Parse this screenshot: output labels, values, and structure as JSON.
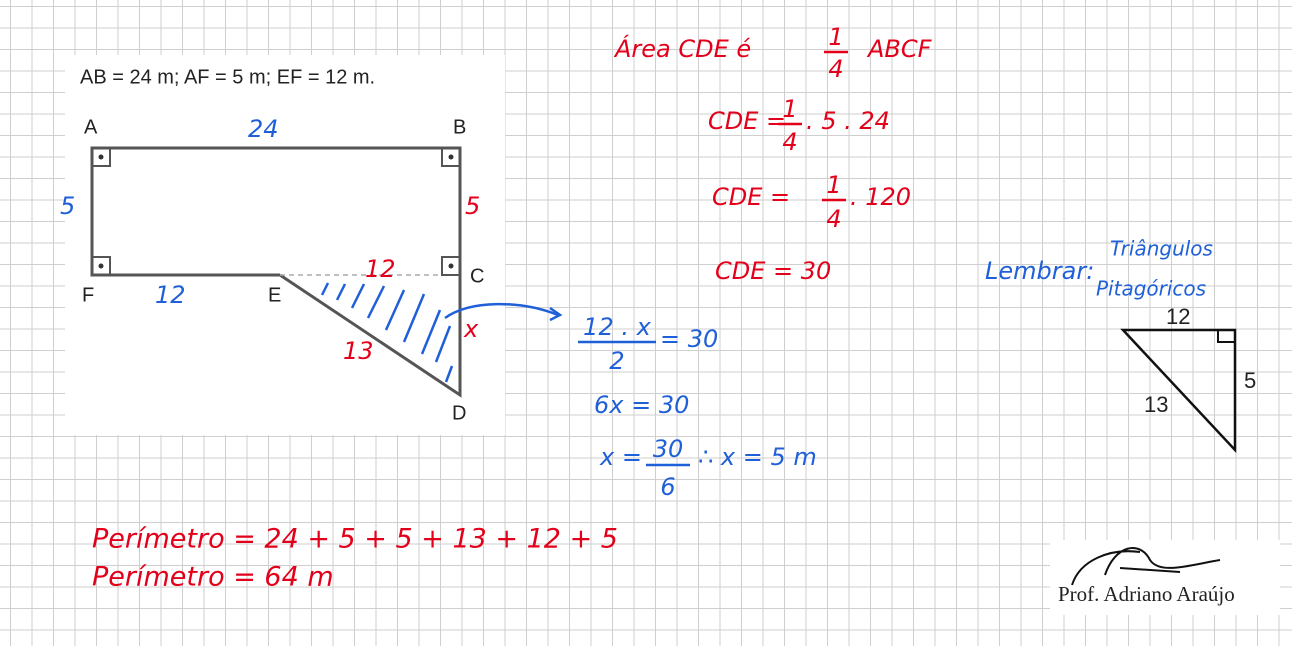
{
  "problem": "AB = 24 m; AF = 5 m; EF = 12 m.",
  "figure": {
    "vertices": {
      "a": "A",
      "b": "B",
      "c": "C",
      "d": "D",
      "e": "E",
      "f": "F"
    },
    "sides": {
      "ab": "24",
      "af": "5",
      "bc": "5",
      "fe": "12",
      "ec": "12",
      "ed": "13",
      "cd": "x"
    }
  },
  "area_notes": {
    "line1": {
      "lhs": "Área CDE é",
      "num": "1",
      "den": "4",
      "rhs": "ABCF"
    },
    "line2": {
      "lhs": "CDE =",
      "num": "1",
      "den": "4",
      "rhs": ". 5 . 24"
    },
    "line3": {
      "lhs": "CDE =",
      "num": "1",
      "den": "4",
      "rhs": ". 120"
    },
    "line4": "CDE = 30"
  },
  "solution": {
    "line1": {
      "num": "12 . x",
      "den": "2",
      "rhs": "= 30"
    },
    "line2": "6x = 30",
    "line3": {
      "lhs": "x =",
      "num": "30",
      "den": "6",
      "rhs": "∴ x = 5 m"
    }
  },
  "reminder": {
    "label": "Lembrar:",
    "line1": "Triângulos",
    "line2": "Pitagóricos",
    "triangle": {
      "top": "12",
      "right": "5",
      "hyp": "13"
    }
  },
  "perimeter": {
    "line1": "Perímetro = 24 + 5 + 5 + 13 + 12 + 5",
    "line2": "Perímetro = 64 m"
  },
  "signature": "Prof. Adriano Araújo"
}
